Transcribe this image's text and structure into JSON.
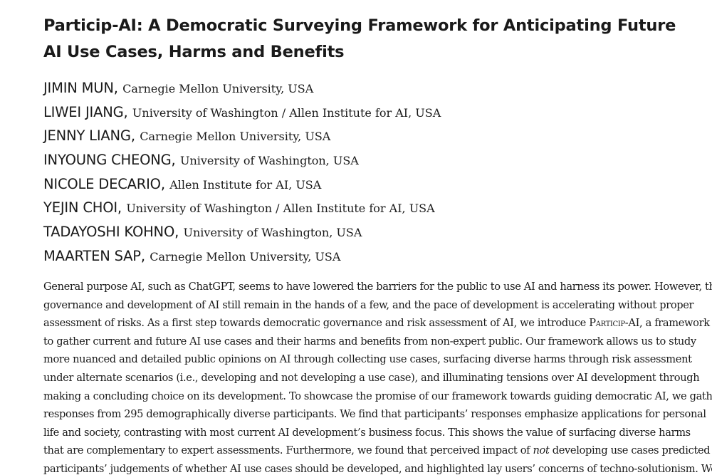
{
  "paper": {
    "title": "Particip-AI: A Democratic Surveying Framework for Anticipating Future AI Use Cases, Harms and Benefits",
    "authors": [
      {
        "name": "JIMIN MUN",
        "affiliation": "Carnegie Mellon University, USA"
      },
      {
        "name": "LIWEI JIANG",
        "affiliation": "University of Washington / Allen Institute for AI, USA"
      },
      {
        "name": "JENNY LIANG",
        "affiliation": "Carnegie Mellon University, USA"
      },
      {
        "name": "INYOUNG CHEONG",
        "affiliation": "University of Washington, USA"
      },
      {
        "name": "NICOLE DECARIO",
        "affiliation": "Allen Institute for AI, USA"
      },
      {
        "name": "YEJIN CHOI",
        "affiliation": "University of Washington / Allen Institute for AI, USA"
      },
      {
        "name": "TADAYOSHI KOHNO",
        "affiliation": "University of Washington, USA"
      },
      {
        "name": "MAARTEN SAP",
        "affiliation": "Carnegie Mellon University, USA"
      }
    ],
    "abstract": {
      "line1": "General purpose AI, such as ChatGPT, seems to have lowered the barriers for the public to use AI and harness its power. However, the",
      "line2": "governance and development of AI still remain in the hands of a few, and the pace of development is accelerating without proper",
      "line3_pre": "assessment of risks. As a first step towards democratic governance and risk assessment of AI, we introduce ",
      "line3_framework": "Particip-AI",
      "line3_post": ", a framework",
      "line4": "to gather current and future AI use cases and their harms and benefits from non-expert public. Our framework allows us to study",
      "line5": "more nuanced and detailed public opinions on AI through collecting use cases, surfacing diverse harms through risk assessment",
      "line6": "under alternate scenarios (i.e., developing and not developing a use case), and illuminating tensions over AI development through",
      "line7": "making a concluding choice on its development. To showcase the promise of our framework towards guiding democratic AI, we gather",
      "line8": "responses from 295 demographically diverse participants. We find that participants’ responses emphasize applications for personal",
      "line9": "life and society, contrasting with most current AI development’s business focus. This shows the value of surfacing diverse harms",
      "line10_pre": "that are complementary to expert assessments. Furthermore, we found that perceived impact of ",
      "line10_em": "not",
      "line10_post": " developing use cases predicted",
      "line11": "participants’ judgements of whether AI use cases should be developed, and highlighted lay users’ concerns of techno-solutionism. We"
    }
  }
}
